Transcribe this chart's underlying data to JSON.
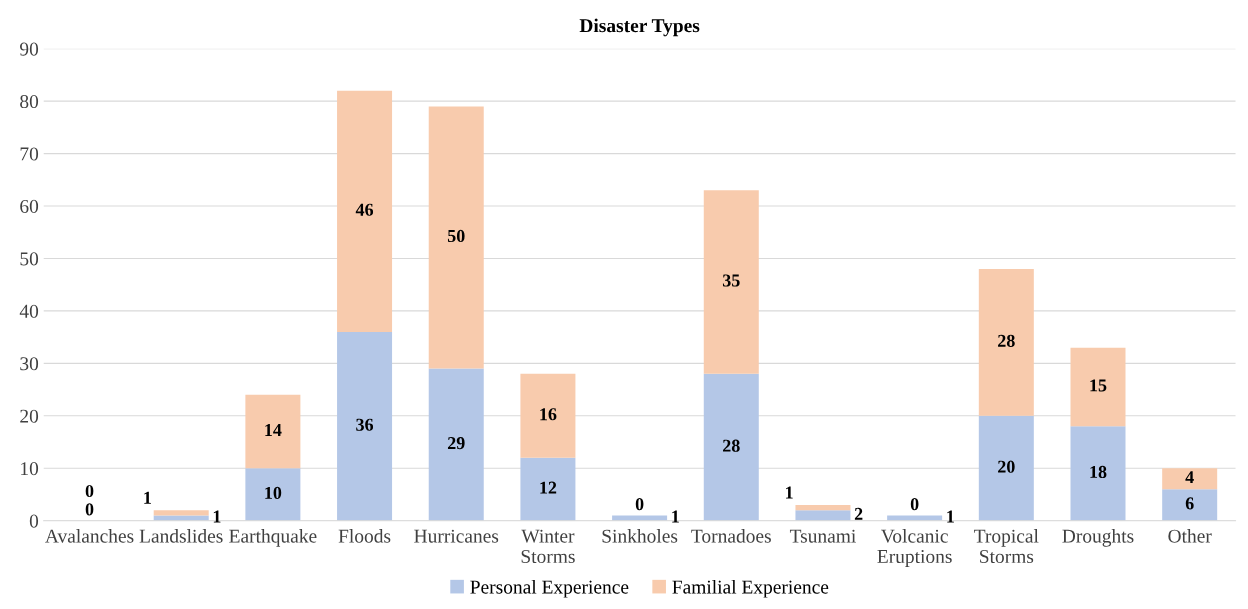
{
  "chart_data": {
    "type": "bar",
    "title": "Disaster Types",
    "stacked": true,
    "categories": [
      "Avalanches",
      "Landslides",
      "Earthquake",
      "Floods",
      "Hurricanes",
      "Winter Storms",
      "Sinkholes",
      "Tornadoes",
      "Tsunami",
      "Volcanic Eruptions",
      "Tropical Storms",
      "Droughts",
      "Other"
    ],
    "series": [
      {
        "name": "Personal Experience",
        "color": "#b4c7e7",
        "values": [
          0,
          1,
          10,
          36,
          29,
          12,
          1,
          28,
          2,
          1,
          20,
          18,
          6
        ]
      },
      {
        "name": "Familial Experience",
        "color": "#f8cbad",
        "values": [
          0,
          1,
          14,
          46,
          50,
          16,
          0,
          35,
          1,
          0,
          28,
          15,
          4
        ]
      }
    ],
    "ylim": [
      0,
      90
    ],
    "yticks": [
      0,
      10,
      20,
      30,
      40,
      50,
      60,
      70,
      80,
      90
    ],
    "grid": "y",
    "legend": "bottom",
    "data_labels": true
  }
}
